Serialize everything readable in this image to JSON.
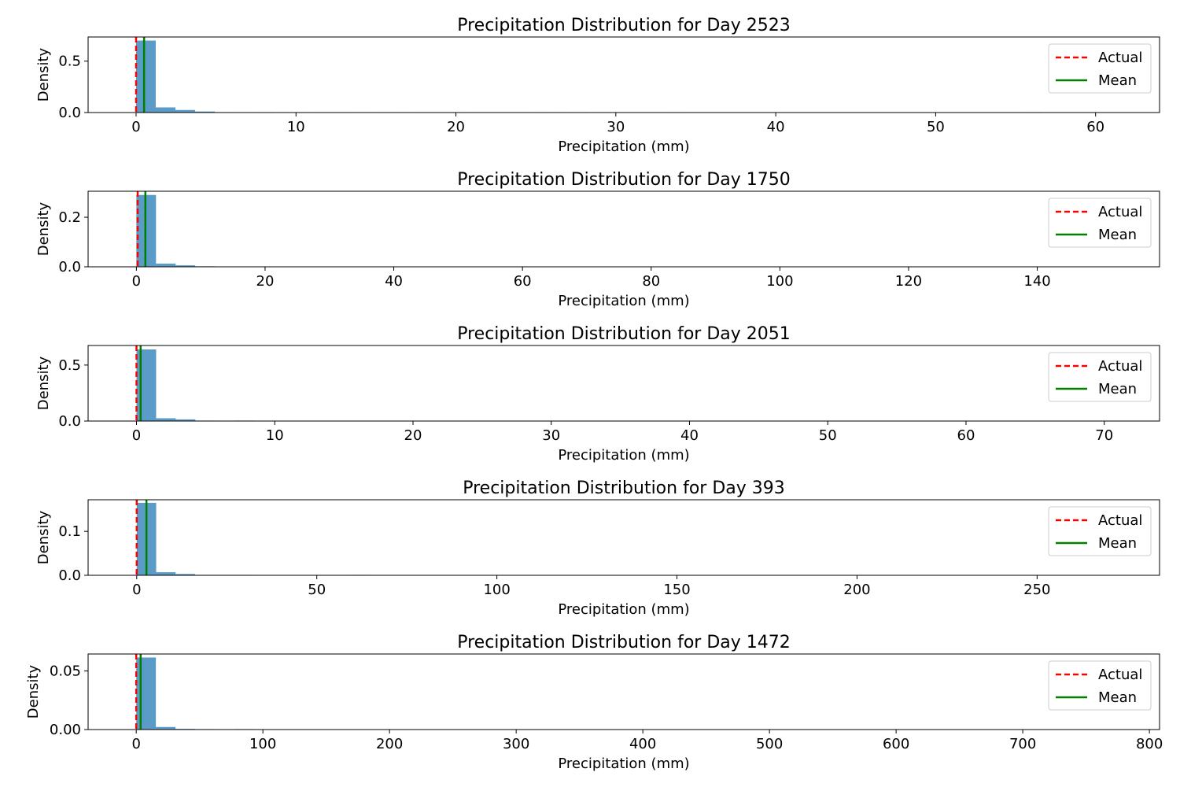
{
  "chart_data": [
    {
      "type": "histogram",
      "title": "Precipitation Distribution for Day 2523",
      "xlabel": "Precipitation (mm)",
      "ylabel": "Density",
      "xlim": [
        -3,
        64
      ],
      "ylim": [
        0,
        0.735
      ],
      "xticks": [
        0,
        10,
        20,
        30,
        40,
        50,
        60
      ],
      "yticks": [
        "0.0",
        "0.5"
      ],
      "yticks_values": [
        0,
        0.5
      ],
      "bin_width": 1.23,
      "bins": [
        {
          "x0": 0,
          "density": 0.7
        },
        {
          "x0": 1.23,
          "density": 0.05
        },
        {
          "x0": 2.46,
          "density": 0.025
        },
        {
          "x0": 3.69,
          "density": 0.01
        },
        {
          "x0": 4.92,
          "density": 0.004
        },
        {
          "x0": 6.15,
          "density": 0.003
        },
        {
          "x0": 7.38,
          "density": 0.002
        },
        {
          "x0": 11.07,
          "density": 0.002
        },
        {
          "x0": 12.3,
          "density": 0.002
        },
        {
          "x0": 14.76,
          "density": 0.002
        },
        {
          "x0": 17.22,
          "density": 0.002
        },
        {
          "x0": 18.45,
          "density": 0.002
        },
        {
          "x0": 19.68,
          "density": 0.002
        },
        {
          "x0": 24.6,
          "density": 0.002
        },
        {
          "x0": 27.06,
          "density": 0.002
        },
        {
          "x0": 33.21,
          "density": 0.002
        },
        {
          "x0": 55.35,
          "density": 0.002
        }
      ],
      "actual": 0,
      "mean": 0.5,
      "legend": [
        "Actual",
        "Mean"
      ]
    },
    {
      "type": "histogram",
      "title": "Precipitation Distribution for Day 1750",
      "xlabel": "Precipitation (mm)",
      "ylabel": "Density",
      "xlim": [
        -7.5,
        159
      ],
      "ylim": [
        0,
        0.305
      ],
      "xticks": [
        0,
        20,
        40,
        60,
        80,
        100,
        120,
        140
      ],
      "yticks": [
        "0.0",
        "0.2"
      ],
      "yticks_values": [
        0,
        0.2
      ],
      "bin_width": 3.05,
      "bins": [
        {
          "x0": 0,
          "density": 0.29
        },
        {
          "x0": 3.05,
          "density": 0.013
        },
        {
          "x0": 6.1,
          "density": 0.006
        },
        {
          "x0": 9.15,
          "density": 0.002
        }
      ],
      "actual": 0.2,
      "mean": 1.4,
      "legend": [
        "Actual",
        "Mean"
      ]
    },
    {
      "type": "histogram",
      "title": "Precipitation Distribution for Day 2051",
      "xlabel": "Precipitation (mm)",
      "ylabel": "Density",
      "xlim": [
        -3.5,
        74
      ],
      "ylim": [
        0,
        0.675
      ],
      "xticks": [
        0,
        10,
        20,
        30,
        40,
        50,
        60,
        70
      ],
      "yticks": [
        "0.0",
        "0.5"
      ],
      "yticks_values": [
        0,
        0.5
      ],
      "bin_width": 1.42,
      "bins": [
        {
          "x0": 0,
          "density": 0.64
        },
        {
          "x0": 1.42,
          "density": 0.025
        },
        {
          "x0": 2.84,
          "density": 0.015
        },
        {
          "x0": 4.26,
          "density": 0.004
        },
        {
          "x0": 7.1,
          "density": 0.004
        }
      ],
      "actual": 0,
      "mean": 0.3,
      "legend": [
        "Actual",
        "Mean"
      ]
    },
    {
      "type": "histogram",
      "title": "Precipitation Distribution for Day 393",
      "xlabel": "Precipitation (mm)",
      "ylabel": "Density",
      "xlim": [
        -13.5,
        284
      ],
      "ylim": [
        0,
        0.172
      ],
      "xticks": [
        0,
        50,
        100,
        150,
        200,
        250
      ],
      "yticks": [
        "0.0",
        "0.1"
      ],
      "yticks_values": [
        0,
        0.1
      ],
      "bin_width": 5.4,
      "bins": [
        {
          "x0": 0,
          "density": 0.165
        },
        {
          "x0": 5.4,
          "density": 0.007
        },
        {
          "x0": 10.8,
          "density": 0.003
        },
        {
          "x0": 16.2,
          "density": 0.001
        },
        {
          "x0": 21.6,
          "density": 0.001
        },
        {
          "x0": 27,
          "density": 0.001
        },
        {
          "x0": 59.4,
          "density": 0.001
        }
      ],
      "actual": 0,
      "mean": 2.7,
      "legend": [
        "Actual",
        "Mean"
      ]
    },
    {
      "type": "histogram",
      "title": "Precipitation Distribution for Day 1472",
      "xlabel": "Precipitation (mm)",
      "ylabel": "Density",
      "xlim": [
        -38,
        808
      ],
      "ylim": [
        0,
        0.0645
      ],
      "xticks": [
        0,
        100,
        200,
        300,
        400,
        500,
        600,
        700,
        800
      ],
      "yticks": [
        "0.00",
        "0.05"
      ],
      "yticks_values": [
        0,
        0.05
      ],
      "bin_width": 15.5,
      "bins": [
        {
          "x0": 0,
          "density": 0.0615
        },
        {
          "x0": 15.5,
          "density": 0.0022
        },
        {
          "x0": 31,
          "density": 0.0006
        },
        {
          "x0": 46.5,
          "density": 0.0004
        },
        {
          "x0": 77.5,
          "density": 0.0004
        }
      ],
      "actual": 0,
      "mean": 3.5,
      "legend": [
        "Actual",
        "Mean"
      ]
    }
  ],
  "colors": {
    "bar": "#5b9bc8",
    "actual": "#ff0000",
    "mean": "#008000",
    "axes": "#000000"
  }
}
